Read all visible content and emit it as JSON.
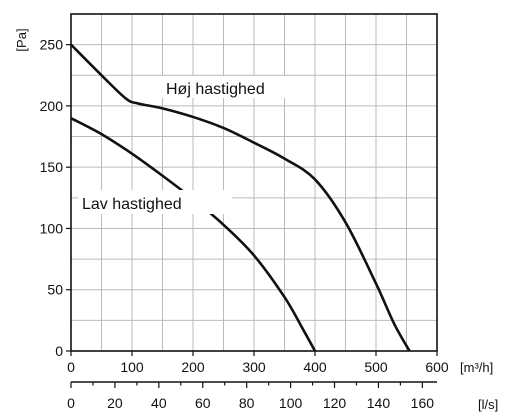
{
  "chart_data": {
    "type": "line",
    "ylabel": "[Pa]",
    "xlabel": "[m³/h]",
    "xlabel_secondary": "[l/s]",
    "xlim": [
      0,
      600
    ],
    "ylim": [
      0,
      275
    ],
    "grid": true,
    "x_ticks": [
      0,
      100,
      200,
      300,
      400,
      500,
      600
    ],
    "y_ticks": [
      0,
      50,
      100,
      150,
      200,
      250
    ],
    "x_ticks_secondary": [
      0,
      20,
      40,
      60,
      80,
      100,
      120,
      140,
      160
    ],
    "series": [
      {
        "name": "Høj hastighed",
        "x": [
          0,
          50,
          90,
          110,
          150,
          200,
          250,
          300,
          350,
          400,
          450,
          500,
          530,
          555
        ],
        "values": [
          250,
          225,
          206,
          202,
          198,
          191,
          182,
          170,
          157,
          140,
          105,
          55,
          22,
          0
        ]
      },
      {
        "name": "Lav hastighed",
        "x": [
          0,
          50,
          100,
          150,
          200,
          250,
          300,
          350,
          380,
          400
        ],
        "values": [
          190,
          177,
          161,
          143,
          124,
          103,
          78,
          44,
          18,
          0
        ]
      }
    ]
  },
  "colors": {
    "curve": "#111111",
    "grid": "#bbbbbb",
    "frame": "#111111"
  }
}
